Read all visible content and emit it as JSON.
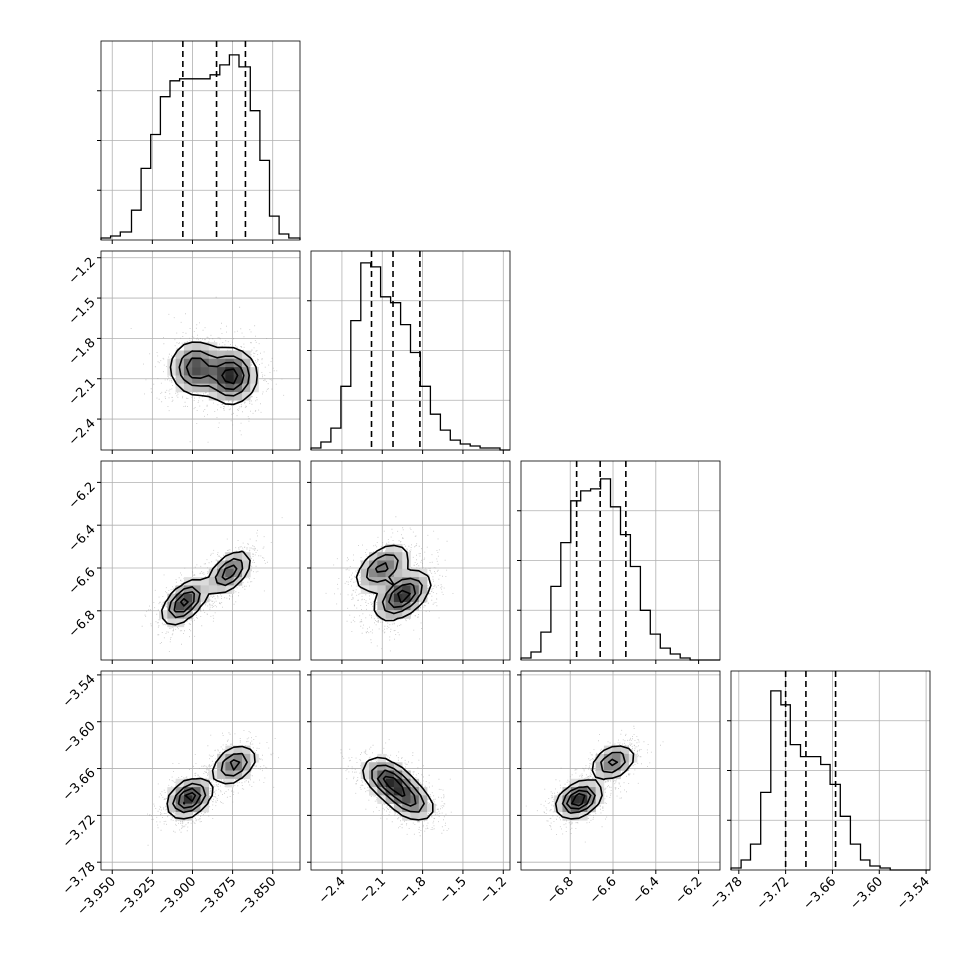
{
  "chart_data": {
    "type": "corner",
    "parameters": [
      {
        "range": [
          -3.957,
          -3.833
        ],
        "ticks": [
          -3.95,
          -3.925,
          -3.9,
          -3.875,
          -3.85
        ],
        "tick_labels": [
          "−3.950",
          "−3.925",
          "−3.900",
          "−3.875",
          "−3.850"
        ],
        "quantiles": [
          -3.906,
          -3.885,
          -3.867
        ],
        "hist_edges": [
          -3.957,
          -3.951,
          -3.945,
          -3.938,
          -3.932,
          -3.926,
          -3.92,
          -3.914,
          -3.908,
          -3.901,
          -3.895,
          -3.889,
          -3.883,
          -3.877,
          -3.871,
          -3.864,
          -3.858,
          -3.852,
          -3.846,
          -3.84,
          -3.833
        ],
        "hist_counts": [
          0.01,
          0.02,
          0.04,
          0.15,
          0.36,
          0.53,
          0.72,
          0.8,
          0.81,
          0.81,
          0.81,
          0.83,
          0.88,
          0.93,
          0.87,
          0.65,
          0.4,
          0.12,
          0.03,
          0.01
        ]
      },
      {
        "range": [
          -2.63,
          -1.15
        ],
        "ticks": [
          -2.4,
          -2.1,
          -1.8,
          -1.5,
          -1.2
        ],
        "tick_labels": [
          "−2.4",
          "−2.1",
          "−1.8",
          "−1.5",
          "−1.2"
        ],
        "quantiles": [
          -2.18,
          -2.02,
          -1.82
        ],
        "hist_edges": [
          -2.63,
          -2.556,
          -2.482,
          -2.408,
          -2.334,
          -2.26,
          -2.186,
          -2.112,
          -2.038,
          -1.964,
          -1.89,
          -1.816,
          -1.742,
          -1.668,
          -1.594,
          -1.52,
          -1.446,
          -1.372,
          -1.298,
          -1.224,
          -1.15
        ],
        "hist_counts": [
          0.01,
          0.04,
          0.11,
          0.32,
          0.65,
          0.94,
          0.92,
          0.77,
          0.74,
          0.63,
          0.49,
          0.32,
          0.18,
          0.1,
          0.05,
          0.03,
          0.02,
          0.01,
          0.01,
          0.0
        ]
      },
      {
        "range": [
          -7.03,
          -6.1
        ],
        "ticks": [
          -6.8,
          -6.6,
          -6.4,
          -6.2
        ],
        "tick_labels": [
          "−6.8",
          "−6.6",
          "−6.4",
          "−6.2"
        ],
        "quantiles": [
          -6.77,
          -6.66,
          -6.54
        ],
        "hist_edges": [
          -7.03,
          -6.9835,
          -6.937,
          -6.8905,
          -6.844,
          -6.7975,
          -6.751,
          -6.7045,
          -6.658,
          -6.6115,
          -6.565,
          -6.5185,
          -6.472,
          -6.4255,
          -6.379,
          -6.3325,
          -6.286,
          -6.2395,
          -6.193,
          -6.1465,
          -6.1
        ],
        "hist_counts": [
          0.01,
          0.04,
          0.14,
          0.37,
          0.59,
          0.8,
          0.85,
          0.86,
          0.91,
          0.77,
          0.63,
          0.47,
          0.25,
          0.13,
          0.06,
          0.03,
          0.01,
          0.0,
          0.0,
          0.0
        ],
        "label_offset": 5
      },
      {
        "range": [
          -3.79,
          -3.535
        ],
        "ticks": [
          -3.78,
          -3.72,
          -3.66,
          -3.6,
          -3.54
        ],
        "tick_labels": [
          "−3.78",
          "−3.72",
          "−3.66",
          "−3.60",
          "−3.54"
        ],
        "quantiles": [
          -3.72,
          -3.694,
          -3.656
        ],
        "hist_edges": [
          -3.79,
          -3.777,
          -3.765,
          -3.752,
          -3.739,
          -3.726,
          -3.714,
          -3.701,
          -3.688,
          -3.675,
          -3.663,
          -3.65,
          -3.637,
          -3.624,
          -3.612,
          -3.599,
          -3.586,
          -3.573,
          -3.561,
          -3.548,
          -3.535
        ],
        "hist_counts": [
          0.01,
          0.05,
          0.13,
          0.39,
          0.9,
          0.83,
          0.63,
          0.57,
          0.57,
          0.53,
          0.43,
          0.27,
          0.13,
          0.05,
          0.02,
          0.01,
          0.0,
          0.0,
          0.0,
          0.0
        ]
      }
    ],
    "pair_panels": [
      {
        "row": 1,
        "col": 0,
        "modes": [
          {
            "x": -3.898,
            "y": -2.02,
            "w": 0.6
          },
          {
            "x": -3.876,
            "y": -2.08,
            "w": 0.75
          }
        ],
        "corr": 0.0,
        "s": [
          0.014,
          0.18
        ]
      },
      {
        "row": 2,
        "col": 0,
        "modes": [
          {
            "x": -3.905,
            "y": -6.76,
            "w": 0.75
          },
          {
            "x": -3.877,
            "y": -6.62,
            "w": 0.6
          }
        ],
        "corr": 0.55,
        "s": [
          0.012,
          0.09
        ]
      },
      {
        "row": 2,
        "col": 1,
        "modes": [
          {
            "x": -2.1,
            "y": -6.6,
            "w": 0.55
          },
          {
            "x": -1.95,
            "y": -6.73,
            "w": 0.8
          }
        ],
        "corr": 0.5,
        "s": [
          0.18,
          0.1
        ]
      },
      {
        "row": 3,
        "col": 0,
        "modes": [
          {
            "x": -3.902,
            "y": -3.698,
            "w": 0.8
          },
          {
            "x": -3.874,
            "y": -3.655,
            "w": 0.55
          }
        ],
        "corr": 0.35,
        "s": [
          0.012,
          0.022
        ]
      },
      {
        "row": 3,
        "col": 1,
        "modes": [
          {
            "x": -2.05,
            "y": -3.675,
            "w": 0.8
          },
          {
            "x": -1.9,
            "y": -3.7,
            "w": 0.6
          }
        ],
        "corr": -0.45,
        "s": [
          0.17,
          0.025
        ]
      },
      {
        "row": 3,
        "col": 2,
        "modes": [
          {
            "x": -6.76,
            "y": -3.7,
            "w": 0.8
          },
          {
            "x": -6.6,
            "y": -3.652,
            "w": 0.5
          }
        ],
        "corr": 0.35,
        "s": [
          0.09,
          0.02
        ]
      }
    ],
    "grid": true
  }
}
